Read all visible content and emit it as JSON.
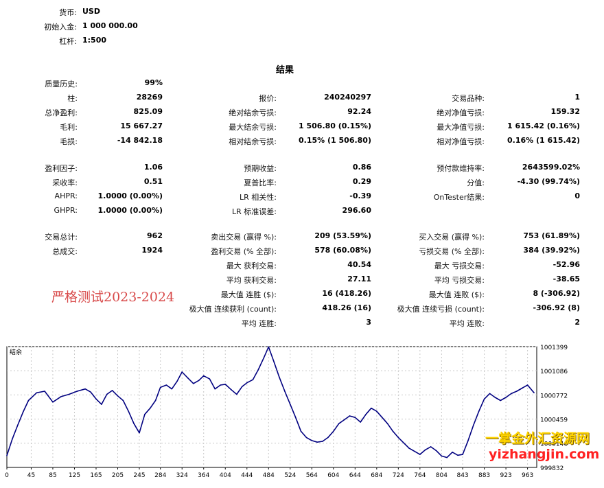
{
  "header": {
    "rows": [
      {
        "label": "货币:",
        "value": "USD"
      },
      {
        "label": "初始入金:",
        "value": "1 000 000.00"
      },
      {
        "label": "杠杆:",
        "value": "1:500"
      }
    ]
  },
  "results_title": "结果",
  "stats": {
    "col1": [
      {
        "label": "质量历史:",
        "value": "99%"
      },
      {
        "label": "柱:",
        "value": "28269"
      },
      {
        "label": "总净盈利:",
        "value": "825.09"
      },
      {
        "label": "毛利:",
        "value": "15 667.27"
      },
      {
        "label": "毛损:",
        "value": "-14 842.18"
      },
      {
        "label": "盈利因子:",
        "value": "1.06"
      },
      {
        "label": "采收率:",
        "value": "0.51"
      },
      {
        "label": "AHPR:",
        "value": "1.0000 (0.00%)"
      },
      {
        "label": "GHPR:",
        "value": "1.0000 (0.00%)"
      },
      {
        "label": "交易总计:",
        "value": "962"
      },
      {
        "label": "总成交:",
        "value": "1924"
      }
    ],
    "col2": [
      {
        "label": "报价:",
        "value": "240240297"
      },
      {
        "label": "绝对结余亏损:",
        "value": "92.24"
      },
      {
        "label": "最大结余亏损:",
        "value": "1 506.80 (0.15%)"
      },
      {
        "label": "相对结余亏损:",
        "value": "0.15% (1 506.80)"
      },
      {
        "label": "预期收益:",
        "value": "0.86"
      },
      {
        "label": "夏普比率:",
        "value": "0.29"
      },
      {
        "label": "LR 相关性:",
        "value": "-0.39"
      },
      {
        "label": "LR 标准误差:",
        "value": "296.60"
      },
      {
        "label": "卖出交易 (赢得 %):",
        "value": "209 (53.59%)"
      },
      {
        "label": "盈利交易 (% 全部):",
        "value": "578 (60.08%)"
      },
      {
        "label": "最大 获利交易:",
        "value": "40.54"
      },
      {
        "label": "平均 获利交易:",
        "value": "27.11"
      },
      {
        "label": "最大值 连胜 ($):",
        "value": "16 (418.26)"
      },
      {
        "label": "极大值 连续获利 (count):",
        "value": "418.26 (16)"
      },
      {
        "label": "平均 连胜:",
        "value": "3"
      }
    ],
    "col3": [
      {
        "label": "交易品种:",
        "value": "1"
      },
      {
        "label": "绝对净值亏损:",
        "value": "159.32"
      },
      {
        "label": "最大净值亏损:",
        "value": "1 615.42 (0.16%)"
      },
      {
        "label": "相对净值亏损:",
        "value": "0.16% (1 615.42)"
      },
      {
        "label": "预付款维持率:",
        "value": "2643599.02%"
      },
      {
        "label": "分值:",
        "value": "-4.30 (99.74%)"
      },
      {
        "label": "OnTester结果:",
        "value": "0"
      },
      {
        "label": "买入交易 (赢得 %):",
        "value": "753 (61.89%)"
      },
      {
        "label": "亏损交易 (% 全部):",
        "value": "384 (39.92%)"
      },
      {
        "label": "最大 亏损交易:",
        "value": "-52.96"
      },
      {
        "label": "平均 亏损交易:",
        "value": "-38.65"
      },
      {
        "label": "最大值 连败 ($):",
        "value": "8 (-306.92)"
      },
      {
        "label": "极大值 连续亏损 (count):",
        "value": "-306.92 (8)"
      },
      {
        "label": "平均 连败:",
        "value": "2"
      }
    ]
  },
  "watermark_text": "严格测试2023-2024",
  "watermark_cn": "一掌金外汇资源网",
  "watermark_site": "yizhangjin.com",
  "chart_data": {
    "type": "line",
    "title": "结余",
    "x_ticks": [
      "0",
      "45",
      "85",
      "125",
      "165",
      "205",
      "245",
      "284",
      "324",
      "364",
      "404",
      "444",
      "484",
      "524",
      "564",
      "604",
      "644",
      "684",
      "724",
      "764",
      "804",
      "843",
      "883",
      "923",
      "963"
    ],
    "y_ticks": [
      "1001399",
      "1001086",
      "1000772",
      "1000459",
      "1000146",
      "999832"
    ],
    "ylim": [
      999832,
      1001399
    ],
    "xlim": [
      0,
      980
    ],
    "grid": true,
    "line_color": "#000080",
    "series": [
      {
        "x": [
          0,
          10,
          20,
          30,
          40,
          55,
          70,
          85,
          100,
          115,
          130,
          145,
          155,
          165,
          175,
          185,
          195,
          205,
          215,
          225,
          235,
          245,
          255,
          265,
          275,
          284,
          295,
          305,
          315,
          324,
          335,
          345,
          355,
          364,
          375,
          385,
          395,
          404,
          415,
          425,
          435,
          444,
          455,
          465,
          475,
          484,
          494,
          504,
          514,
          524,
          534,
          544,
          554,
          564,
          574,
          584,
          594,
          604,
          614,
          624,
          634,
          644,
          654,
          664,
          674,
          684,
          694,
          704,
          714,
          724,
          734,
          744,
          754,
          764,
          774,
          784,
          794,
          804,
          814,
          824,
          834,
          843,
          853,
          863,
          873,
          883,
          893,
          903,
          913,
          923,
          933,
          943,
          953,
          963,
          975
        ],
        "y": [
          999985,
          1000200,
          1000380,
          1000550,
          1000700,
          1000800,
          1000820,
          1000680,
          1000750,
          1000780,
          1000820,
          1000850,
          1000810,
          1000720,
          1000650,
          1000780,
          1000830,
          1000760,
          1000700,
          1000560,
          1000400,
          1000280,
          1000520,
          1000600,
          1000700,
          1000870,
          1000900,
          1000850,
          1000950,
          1001070,
          1000990,
          1000920,
          1000960,
          1001020,
          1000980,
          1000850,
          1000900,
          1000910,
          1000840,
          1000780,
          1000880,
          1000930,
          1000970,
          1001100,
          1001250,
          1001395,
          1001200,
          1001000,
          1000820,
          1000650,
          1000480,
          1000300,
          1000220,
          1000180,
          1000160,
          1000170,
          1000220,
          1000300,
          1000400,
          1000450,
          1000500,
          1000480,
          1000420,
          1000520,
          1000600,
          1000560,
          1000480,
          1000400,
          1000300,
          1000220,
          1000150,
          1000080,
          1000040,
          1000000,
          1000060,
          1000100,
          1000050,
          999980,
          999960,
          1000030,
          999990,
          1000000,
          1000180,
          1000380,
          1000560,
          1000720,
          1000790,
          1000740,
          1000700,
          1000740,
          1000790,
          1000820,
          1000860,
          1000900,
          1000800
        ]
      }
    ]
  }
}
